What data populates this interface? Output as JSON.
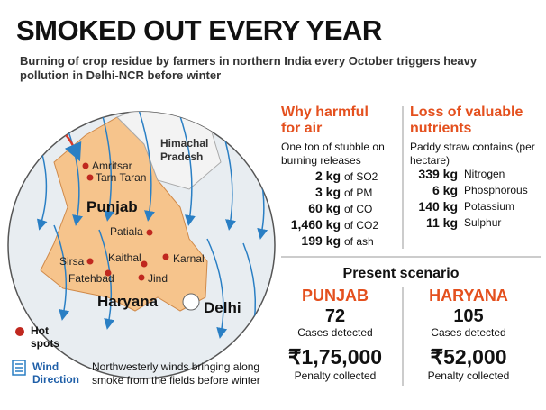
{
  "header": {
    "title": "SMOKED OUT EVERY YEAR",
    "subtitle": "Burning of crop residue by farmers in northern India every October triggers heavy pollution in Delhi-NCR before winter"
  },
  "map": {
    "himachal": "Himachal Pradesh",
    "punjab": "Punjab",
    "haryana": "Haryana",
    "delhi": "Delhi",
    "cities": [
      "Amritsar",
      "Tarn Taran",
      "Patiala",
      "Kaithal",
      "Sirsa",
      "Karnal",
      "Fatehbad",
      "Jind"
    ]
  },
  "legend": {
    "hot_spots": "Hot spots",
    "wind": "Wind Direction",
    "wind_note": "Northwesterly winds bringing along smoke from the fields before winter"
  },
  "air": {
    "title": "Why harmful for air",
    "intro": "One ton of stubble on burning releases",
    "items": [
      [
        "2 kg",
        "of SO2"
      ],
      [
        "3 kg",
        "of PM"
      ],
      [
        "60 kg",
        "of CO"
      ],
      [
        "1,460 kg",
        "of CO2"
      ],
      [
        "199 kg",
        "of ash"
      ]
    ]
  },
  "nutrients": {
    "title": "Loss of valuable nutrients",
    "intro": "Paddy straw contains (per hectare)",
    "items": [
      [
        "339 kg",
        "Nitrogen"
      ],
      [
        "6 kg",
        "Phosphorous"
      ],
      [
        "140 kg",
        "Potassium"
      ],
      [
        "11 kg",
        "Sulphur"
      ]
    ]
  },
  "scenario": {
    "title": "Present scenario",
    "states": [
      {
        "name": "PUNJAB",
        "cases": "72",
        "cases_label": "Cases detected",
        "penalty": "₹1,75,000",
        "penalty_label": "Penalty collected"
      },
      {
        "name": "HARYANA",
        "cases": "105",
        "cases_label": "Cases detected",
        "penalty": "₹52,000",
        "penalty_label": "Penalty collected"
      }
    ]
  }
}
